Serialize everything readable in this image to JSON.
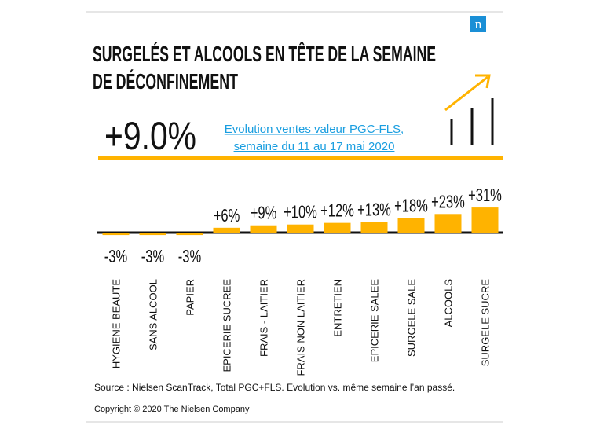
{
  "chart_data": {
    "type": "bar",
    "title": [
      "SURGELÉS ET ALCOOLS EN TÊTE DE LA SEMAINE",
      "DE DÉCONFINEMENT"
    ],
    "logo": "n",
    "headline": "+9.0%",
    "subtitle": [
      "Evolution ventes valeur PGC-FLS,",
      "semaine du 11 au 17 mai 2020"
    ],
    "categories": [
      "HYGIENE BEAUTE",
      "SANS ALCOOL",
      "PAPIER",
      "EPICERIE SUCREE",
      "FRAIS - LAITIER",
      "FRAIS NON LAITIER",
      "ENTRETIEN",
      "EPICERIE SALEE",
      "SURGELE SALE",
      "ALCOOLS",
      "SURGELE SUCRE"
    ],
    "values": [
      -3,
      -3,
      -3,
      6,
      9,
      10,
      12,
      13,
      18,
      23,
      31
    ],
    "value_labels": [
      "-3%",
      "-3%",
      "-3%",
      "+6%",
      "+9%",
      "+10%",
      "+12%",
      "+13%",
      "+18%",
      "+23%",
      "+31%"
    ],
    "color": "#ffb300",
    "source": "Source : Nielsen ScanTrack, Total PGC+FLS. Evolution vs. même semaine l’an passé.",
    "copyright": "Copyright © 2020 The Nielsen Company"
  }
}
